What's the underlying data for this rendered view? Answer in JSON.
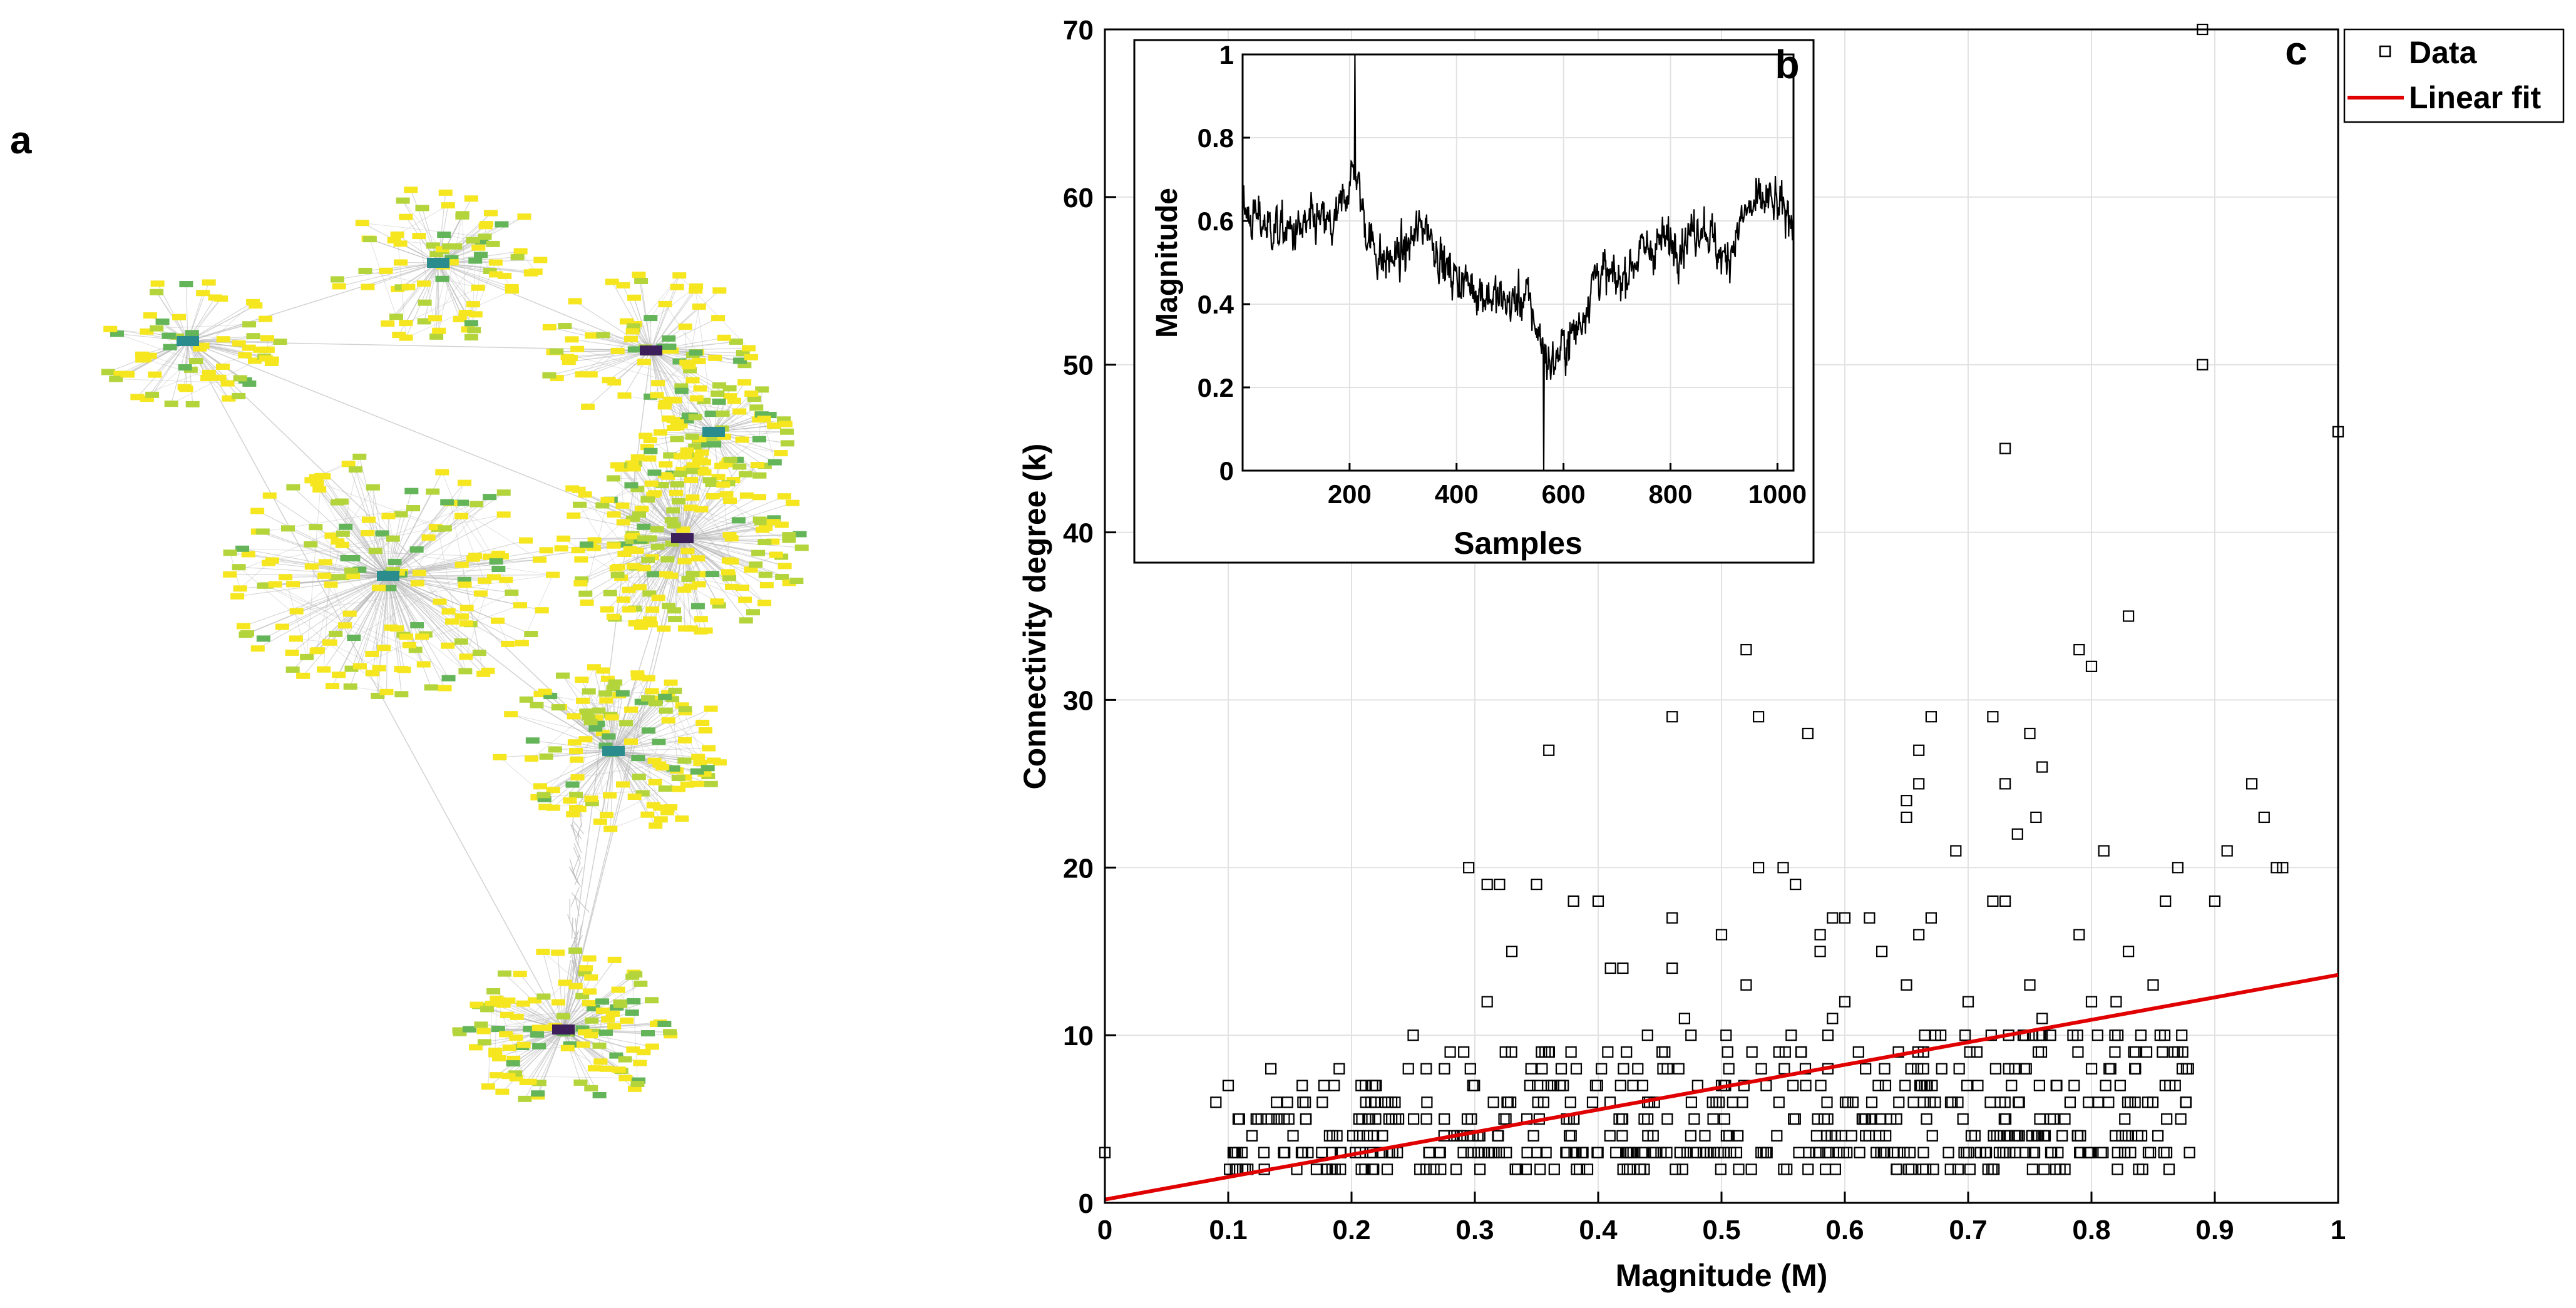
{
  "panels": {
    "a_label": "a",
    "b_label": "b",
    "c_label": "c"
  },
  "colors": {
    "node_yellow": "#f5e61f",
    "node_lime": "#b4d43c",
    "node_green": "#64b45a",
    "node_teal": "#2a8c8c",
    "node_purple": "#3c1e5a",
    "edge": "#b4b4b4",
    "fit": "#e00000",
    "grid": "#e2e2e2",
    "axis": "#000000"
  },
  "chart_data": [
    {
      "id": "c",
      "type": "scatter",
      "title": "",
      "xlabel": "Magnitude (M)",
      "ylabel": "Connectivity degree (k)",
      "xlim": [
        0,
        1
      ],
      "ylim": [
        0,
        70
      ],
      "xticks": [
        0,
        0.1,
        0.2,
        0.3,
        0.4,
        0.5,
        0.6,
        0.7,
        0.8,
        0.9,
        1
      ],
      "xtick_labels": [
        "0",
        "0.1",
        "0.2",
        "0.3",
        "0.4",
        "0.5",
        "0.6",
        "0.7",
        "0.8",
        "0.9",
        "1"
      ],
      "yticks": [
        0,
        10,
        20,
        30,
        40,
        50,
        60,
        70
      ],
      "ytick_labels": [
        "0",
        "10",
        "20",
        "30",
        "40",
        "50",
        "60",
        "70"
      ],
      "grid": true,
      "legend": {
        "placement": "top-right",
        "entries": [
          "Data",
          "Linear fit"
        ]
      },
      "series": [
        {
          "name": "Data",
          "marker": "open-square",
          "x": [
            0.0,
            0.89,
            0.89,
            1.0,
            0.73,
            0.52,
            0.46,
            0.53,
            0.57,
            0.36,
            0.83,
            0.79,
            0.8,
            0.95,
            0.91,
            0.93,
            0.94,
            0.66,
            0.67,
            0.72,
            0.75,
            0.76,
            0.65,
            0.65,
            0.66,
            0.74,
            0.755,
            0.73,
            0.295,
            0.31,
            0.32,
            0.35,
            0.38,
            0.4,
            0.46,
            0.53,
            0.55,
            0.56,
            0.69,
            0.72,
            0.73,
            0.81,
            0.87,
            0.9,
            0.955,
            0.33,
            0.41,
            0.42,
            0.46,
            0.5,
            0.58,
            0.62,
            0.67,
            0.79,
            0.83,
            0.86,
            0.31,
            0.52,
            0.6,
            0.65,
            0.7,
            0.75,
            0.8,
            0.85,
            0.25,
            0.28,
            0.44,
            0.47,
            0.59,
            0.76,
            0.82,
            0.87,
            0.1,
            0.16,
            0.19,
            0.22,
            0.09,
            0.6,
            0.59,
            0.58,
            0.63,
            0.66
          ],
          "y": [
            3,
            70,
            50,
            46,
            45,
            33,
            29,
            29,
            28,
            27,
            35,
            33,
            32,
            20,
            21,
            25,
            23,
            27,
            29,
            29,
            28,
            26,
            24,
            23,
            25,
            22,
            23,
            25,
            20,
            19,
            19,
            19,
            18,
            18,
            17,
            20,
            20,
            19,
            21,
            18,
            18,
            21,
            20,
            18,
            20,
            15,
            14,
            14,
            14,
            16,
            15,
            17,
            17,
            16,
            15,
            18,
            12,
            13,
            12,
            13,
            12,
            13,
            12,
            13,
            10,
            9,
            10,
            11,
            11,
            11,
            12,
            9,
            7,
            7,
            8,
            7,
            6,
            17,
            17,
            16,
            15,
            16
          ],
          "note": "Plus a dense cloud of several hundred points with x between 0.1 and 0.88 and k between 1 and 10, concentrated near k = 2 to 6."
        },
        {
          "name": "Linear fit",
          "type": "line",
          "x": [
            0,
            1
          ],
          "y": [
            0.2,
            13.6
          ]
        }
      ]
    },
    {
      "id": "b",
      "type": "line",
      "title": "",
      "xlabel": "Samples",
      "ylabel": "Magnitude",
      "xlim": [
        0,
        1030
      ],
      "ylim": [
        0,
        1
      ],
      "xticks": [
        200,
        400,
        600,
        800,
        1000
      ],
      "xtick_labels": [
        "200",
        "400",
        "600",
        "800",
        "1000"
      ],
      "yticks": [
        0,
        0.2,
        0.4,
        0.6,
        0.8,
        1
      ],
      "ytick_labels": [
        "0",
        "0.2",
        "0.4",
        "0.6",
        "0.8",
        "1"
      ],
      "grid": true,
      "envelope": {
        "x": [
          0,
          30,
          60,
          100,
          140,
          170,
          200,
          210,
          230,
          260,
          300,
          340,
          380,
          420,
          460,
          500,
          530,
          560,
          575,
          600,
          630,
          660,
          700,
          740,
          780,
          820,
          860,
          900,
          940,
          980,
          1010,
          1030
        ],
        "y": [
          0.62,
          0.6,
          0.58,
          0.57,
          0.6,
          0.58,
          0.7,
          0.72,
          0.58,
          0.5,
          0.52,
          0.6,
          0.48,
          0.45,
          0.42,
          0.4,
          0.42,
          0.3,
          0.25,
          0.3,
          0.35,
          0.48,
          0.45,
          0.52,
          0.55,
          0.55,
          0.6,
          0.5,
          0.62,
          0.65,
          0.62,
          0.62
        ],
        "amplitude": 0.18,
        "min_value": 0.0,
        "max_value": 1.0
      }
    }
  ]
}
